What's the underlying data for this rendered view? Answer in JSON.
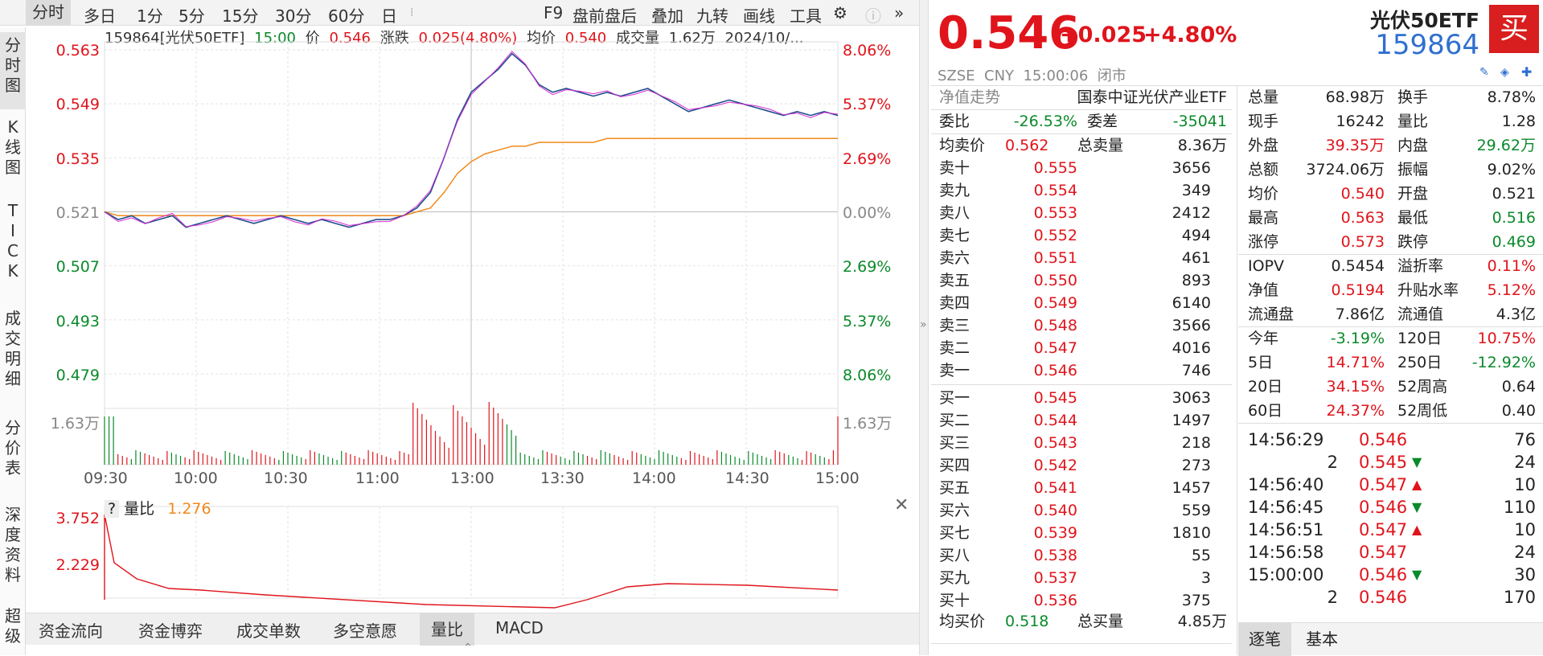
{
  "toolbar": {
    "tabs": [
      "分时",
      "多日",
      "1分",
      "5分",
      "15分",
      "30分",
      "60分",
      "日"
    ],
    "right_items": [
      "F9",
      "盘前盘后",
      "叠加",
      "九转",
      "画线",
      "工具"
    ]
  },
  "left_tabs": [
    "分时图",
    "K线图",
    "TICK",
    "成交明细",
    "分价表",
    "深度资料",
    "超级"
  ],
  "infobar": {
    "code_name": "159864[光伏50ETF]",
    "time": "15:00",
    "price_label": "价",
    "price": "0.546",
    "change_label": "涨跌",
    "change": "0.025(4.80%)",
    "avg_label": "均价",
    "avg": "0.540",
    "vol_label": "成交量",
    "vol": "1.62万",
    "date": "2024/10/..."
  },
  "chart_data": {
    "type": "line",
    "price_axis_left": [
      "0.563",
      "0.549",
      "0.535",
      "0.521",
      "0.507",
      "0.493",
      "0.479"
    ],
    "price_axis_right": [
      "8.06%",
      "5.37%",
      "2.69%",
      "0.00%",
      "2.69%",
      "5.37%",
      "8.06%"
    ],
    "x_ticks": [
      "09:30",
      "10:00",
      "10:30",
      "11:00",
      "13:00",
      "13:30",
      "14:00",
      "14:30",
      "15:00"
    ],
    "ylim": [
      0.479,
      0.563
    ],
    "prev_close": 0.521,
    "vol_axis_label": "1.63万",
    "price_series": [
      0.521,
      0.519,
      0.52,
      0.518,
      0.519,
      0.52,
      0.517,
      0.518,
      0.519,
      0.52,
      0.519,
      0.518,
      0.519,
      0.52,
      0.519,
      0.518,
      0.519,
      0.518,
      0.517,
      0.518,
      0.519,
      0.519,
      0.52,
      0.522,
      0.526,
      0.535,
      0.545,
      0.552,
      0.555,
      0.558,
      0.562,
      0.559,
      0.554,
      0.552,
      0.553,
      0.552,
      0.551,
      0.552,
      0.551,
      0.552,
      0.553,
      0.551,
      0.549,
      0.547,
      0.548,
      0.549,
      0.55,
      0.549,
      0.548,
      0.547,
      0.546,
      0.547,
      0.546,
      0.547,
      0.546
    ],
    "avg_series": [
      0.521,
      0.52,
      0.52,
      0.52,
      0.52,
      0.52,
      0.52,
      0.52,
      0.52,
      0.52,
      0.52,
      0.52,
      0.52,
      0.52,
      0.52,
      0.52,
      0.52,
      0.52,
      0.52,
      0.52,
      0.52,
      0.52,
      0.52,
      0.521,
      0.522,
      0.526,
      0.531,
      0.534,
      0.536,
      0.537,
      0.538,
      0.538,
      0.539,
      0.539,
      0.539,
      0.539,
      0.539,
      0.54,
      0.54,
      0.54,
      0.54,
      0.54,
      0.54,
      0.54,
      0.54,
      0.54,
      0.54,
      0.54,
      0.54,
      0.54,
      0.54,
      0.54,
      0.54,
      0.54,
      0.54
    ]
  },
  "ratio_panel": {
    "label": "量比",
    "value": "1.276",
    "axis_top": "3.752",
    "axis_mid": "2.229",
    "help": "?"
  },
  "bottom_tabs": [
    "资金流向",
    "资金博弈",
    "成交单数",
    "多空意愿",
    "量比",
    "MACD"
  ],
  "quote": {
    "price": "0.546",
    "change": "+0.025",
    "change_pct": "+4.80%",
    "name": "光伏50ETF",
    "code": "159864",
    "buy_badge": "买",
    "meta": "SZSE  CNY  15:00:06  闭市",
    "nav_trend_label": "净值走势",
    "fund_name": "国泰中证光伏产业ETF",
    "wei_bi_label": "委比",
    "wei_bi": "-26.53%",
    "wei_cha_label": "委差",
    "wei_cha": "-35041",
    "avg_sell_label": "均卖价",
    "avg_sell": "0.562",
    "total_sell_label": "总卖量",
    "total_sell": "8.36万",
    "avg_buy_label": "均买价",
    "avg_buy": "0.518",
    "total_buy_label": "总买量",
    "total_buy": "4.85万"
  },
  "asks": [
    {
      "label": "卖十",
      "price": "0.555",
      "vol": "3656"
    },
    {
      "label": "卖九",
      "price": "0.554",
      "vol": "349"
    },
    {
      "label": "卖八",
      "price": "0.553",
      "vol": "2412"
    },
    {
      "label": "卖七",
      "price": "0.552",
      "vol": "494"
    },
    {
      "label": "卖六",
      "price": "0.551",
      "vol": "461"
    },
    {
      "label": "卖五",
      "price": "0.550",
      "vol": "893"
    },
    {
      "label": "卖四",
      "price": "0.549",
      "vol": "6140"
    },
    {
      "label": "卖三",
      "price": "0.548",
      "vol": "3566"
    },
    {
      "label": "卖二",
      "price": "0.547",
      "vol": "4016"
    },
    {
      "label": "卖一",
      "price": "0.546",
      "vol": "746"
    }
  ],
  "bids": [
    {
      "label": "买一",
      "price": "0.545",
      "vol": "3063"
    },
    {
      "label": "买二",
      "price": "0.544",
      "vol": "1497"
    },
    {
      "label": "买三",
      "price": "0.543",
      "vol": "218"
    },
    {
      "label": "买四",
      "price": "0.542",
      "vol": "273"
    },
    {
      "label": "买五",
      "price": "0.541",
      "vol": "1457"
    },
    {
      "label": "买六",
      "price": "0.540",
      "vol": "559"
    },
    {
      "label": "买七",
      "price": "0.539",
      "vol": "1810"
    },
    {
      "label": "买八",
      "price": "0.538",
      "vol": "55"
    },
    {
      "label": "买九",
      "price": "0.537",
      "vol": "3"
    },
    {
      "label": "买十",
      "price": "0.536",
      "vol": "375"
    }
  ],
  "stats": [
    {
      "l1": "总量",
      "v1": "68.98万",
      "c1": "#222",
      "l2": "换手",
      "v2": "8.78%",
      "c2": "#222"
    },
    {
      "l1": "现手",
      "v1": "16242",
      "c1": "#222",
      "l2": "量比",
      "v2": "1.28",
      "c2": "#222"
    },
    {
      "l1": "外盘",
      "v1": "39.35万",
      "c1": "#e0141b",
      "l2": "内盘",
      "v2": "29.62万",
      "c2": "#0a8a2a"
    },
    {
      "l1": "总额",
      "v1": "3724.06万",
      "c1": "#222",
      "l2": "振幅",
      "v2": "9.02%",
      "c2": "#222"
    },
    {
      "l1": "均价",
      "v1": "0.540",
      "c1": "#e0141b",
      "l2": "开盘",
      "v2": "0.521",
      "c2": "#222"
    },
    {
      "l1": "最高",
      "v1": "0.563",
      "c1": "#e0141b",
      "l2": "最低",
      "v2": "0.516",
      "c2": "#0a8a2a"
    },
    {
      "l1": "涨停",
      "v1": "0.573",
      "c1": "#e0141b",
      "l2": "跌停",
      "v2": "0.469",
      "c2": "#0a8a2a"
    },
    {
      "l1": "IOPV",
      "v1": "0.5454",
      "c1": "#222",
      "l2": "溢折率",
      "v2": "0.11%",
      "c2": "#e0141b"
    },
    {
      "l1": "净值",
      "v1": "0.5194",
      "c1": "#e0141b",
      "l2": "升贴水率",
      "v2": "5.12%",
      "c2": "#e0141b"
    },
    {
      "l1": "流通盘",
      "v1": "7.86亿",
      "c1": "#222",
      "l2": "流通值",
      "v2": "4.3亿",
      "c2": "#222"
    },
    {
      "l1": "今年",
      "v1": "-3.19%",
      "c1": "#0a8a2a",
      "l2": "120日",
      "v2": "10.75%",
      "c2": "#e0141b"
    },
    {
      "l1": "5日",
      "v1": "14.71%",
      "c1": "#e0141b",
      "l2": "250日",
      "v2": "-12.92%",
      "c2": "#0a8a2a"
    },
    {
      "l1": "20日",
      "v1": "34.15%",
      "c1": "#e0141b",
      "l2": "52周高",
      "v2": "0.64",
      "c2": "#222"
    },
    {
      "l1": "60日",
      "v1": "24.37%",
      "c1": "#e0141b",
      "l2": "52周低",
      "v2": "0.40",
      "c2": "#222"
    }
  ],
  "ticks": [
    {
      "time": "14:56:29",
      "price": "0.546",
      "arrow": "",
      "vol": "76"
    },
    {
      "time": "2",
      "price": "0.545",
      "arrow": "down",
      "vol": "24"
    },
    {
      "time": "14:56:40",
      "price": "0.547",
      "arrow": "up",
      "vol": "10"
    },
    {
      "time": "14:56:45",
      "price": "0.546",
      "arrow": "down",
      "vol": "110"
    },
    {
      "time": "14:56:51",
      "price": "0.547",
      "arrow": "up",
      "vol": "10"
    },
    {
      "time": "14:56:58",
      "price": "0.547",
      "arrow": "",
      "vol": "24"
    },
    {
      "time": "15:00:00",
      "price": "0.546",
      "arrow": "down",
      "vol": "30"
    },
    {
      "time": "2",
      "price": "0.546",
      "arrow": "",
      "vol": "170"
    }
  ],
  "detail_tabs": [
    "逐笔",
    "基本"
  ]
}
